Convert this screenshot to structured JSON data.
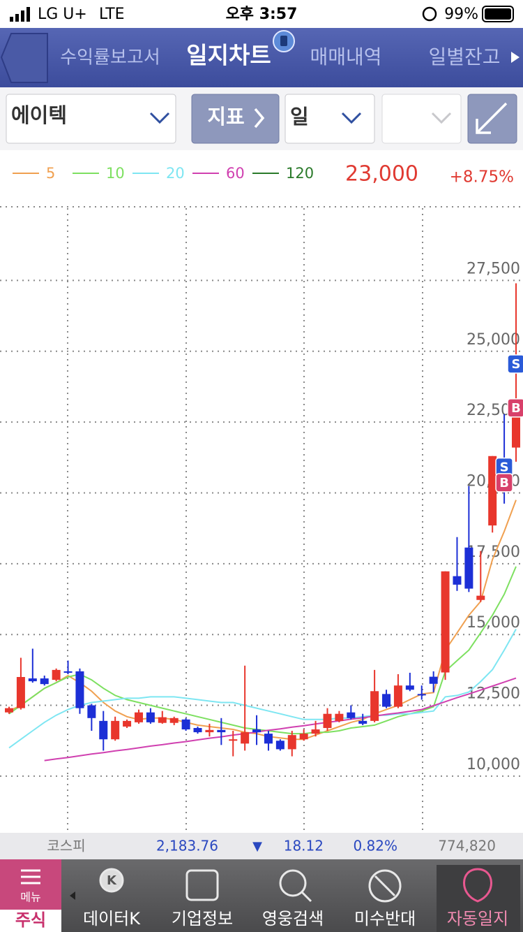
{
  "status_bar": {
    "carrier": "LG U+",
    "network": "LTE",
    "time": "오후 3:57",
    "battery": "99%"
  },
  "tabs": [
    "수익률보고서",
    "일지차트",
    "매매내역",
    "일별잔고"
  ],
  "toolbar": {
    "stock": "에이텍",
    "indicator": "지표",
    "period": "일"
  },
  "price": {
    "last": "23,000",
    "change": "+8.75%"
  },
  "chart_data": {
    "type": "candlestick",
    "up_color": "#e8362c",
    "down_color": "#1c2fd6",
    "open": [
      12250,
      12400,
      13450,
      13450,
      13400,
      13700,
      13700,
      12500,
      11950,
      11300,
      11750,
      11900,
      12250,
      11880,
      11880,
      12000,
      11700,
      11550,
      11630,
      11250,
      11150,
      11650,
      11500,
      11250,
      10950,
      11300,
      11500,
      11700,
      11950,
      12250,
      11950,
      11950,
      12900,
      12450,
      13200,
      12900,
      13510,
      13660,
      17060,
      18070,
      16220,
      18850,
      21230,
      21600
    ],
    "high": [
      12450,
      14180,
      14500,
      13550,
      13800,
      14080,
      13800,
      12550,
      12300,
      12100,
      12000,
      12350,
      12400,
      12300,
      12100,
      12050,
      11750,
      11850,
      12050,
      11600,
      13900,
      12150,
      11600,
      11300,
      11600,
      11650,
      11950,
      12400,
      12300,
      12500,
      12200,
      13750,
      13050,
      13600,
      13650,
      13200,
      13700,
      17230,
      18440,
      20240,
      17950,
      21300,
      22780,
      27400
    ],
    "low": [
      12200,
      12350,
      13300,
      13200,
      13350,
      13600,
      12200,
      11600,
      10900,
      11250,
      11700,
      11850,
      11850,
      11850,
      11800,
      11600,
      11500,
      11400,
      11100,
      10700,
      10900,
      11100,
      10900,
      10900,
      10700,
      11250,
      11400,
      11600,
      11900,
      12000,
      11800,
      11900,
      12400,
      12400,
      13000,
      12700,
      12960,
      13400,
      16540,
      16500,
      16150,
      18600,
      19620,
      21100
    ],
    "close": [
      12400,
      13500,
      13350,
      13250,
      13750,
      13650,
      12400,
      12050,
      11300,
      11950,
      11950,
      12250,
      11900,
      12080,
      12050,
      11650,
      11550,
      11630,
      11550,
      11300,
      11550,
      11550,
      11150,
      10950,
      11450,
      11500,
      11650,
      12200,
      12200,
      12050,
      11850,
      13000,
      12450,
      13200,
      13050,
      12850,
      13260,
      17230,
      16760,
      16620,
      16370,
      21300,
      20360,
      23000
    ],
    "ma_series": [
      {
        "name": "5",
        "color": "#f0a050",
        "values": [
          12300,
          12500,
          12800,
          13100,
          13300,
          13550,
          13300,
          13000,
          12600,
          12300,
          12100,
          12000,
          12050,
          12050,
          12000,
          11900,
          11800,
          11750,
          11700,
          11650,
          11550,
          11500,
          11400,
          11350,
          11300,
          11300,
          11450,
          11600,
          11750,
          11900,
          12000,
          12200,
          12350,
          12500,
          12700,
          12900,
          12950,
          14450,
          15060,
          15680,
          16170,
          17650,
          18640,
          19750
        ]
      },
      {
        "name": "10",
        "color": "#7de060",
        "values": [
          12200,
          12500,
          12800,
          13100,
          13300,
          13500,
          13600,
          13400,
          13100,
          12850,
          12700,
          12600,
          12500,
          12400,
          12300,
          12200,
          12100,
          12000,
          11900,
          11800,
          11700,
          11650,
          11600,
          11550,
          11500,
          11500,
          11550,
          11550,
          11600,
          11700,
          11750,
          11800,
          11950,
          12100,
          12200,
          12300,
          12450,
          13700,
          14080,
          14450,
          15060,
          15680,
          16420,
          17400
        ]
      },
      {
        "name": "20",
        "color": "#7ee6f2",
        "values": [
          11000,
          11300,
          11600,
          11900,
          12150,
          12350,
          12500,
          12600,
          12650,
          12700,
          12750,
          12750,
          12800,
          12800,
          12800,
          12750,
          12700,
          12650,
          12600,
          12600,
          12500,
          12400,
          12300,
          12200,
          12100,
          12000,
          12000,
          12000,
          12050,
          12050,
          12100,
          12150,
          12150,
          12200,
          12200,
          12250,
          12300,
          12800,
          12850,
          12970,
          13340,
          13760,
          14450,
          15190
        ]
      },
      {
        "name": "60",
        "color": "#d040b0",
        "values": [
          null,
          null,
          null,
          10550,
          10610,
          10660,
          10720,
          10780,
          10830,
          10890,
          10940,
          11000,
          11060,
          11110,
          11170,
          11220,
          11280,
          11340,
          11390,
          11450,
          11500,
          11560,
          11620,
          11670,
          11730,
          11780,
          11840,
          11900,
          11950,
          12010,
          12060,
          12120,
          12180,
          12230,
          12290,
          12350,
          12490,
          12630,
          12770,
          12900,
          13040,
          13180,
          13320,
          13460
        ]
      },
      {
        "name": "120",
        "color": "#2a7a2a",
        "values": [
          null,
          null,
          null,
          null,
          null,
          null,
          null,
          null,
          null,
          null,
          null,
          null,
          null,
          null,
          null,
          null,
          null,
          null,
          null,
          null,
          null,
          null,
          null,
          null,
          null,
          null,
          null,
          null,
          null,
          null,
          null,
          null,
          null,
          null,
          null,
          null,
          null,
          null,
          null,
          null,
          null,
          null,
          null,
          null
        ]
      }
    ],
    "markers": [
      {
        "label": "S",
        "value": 24550,
        "candle": 43,
        "color": "#2a5ad8"
      },
      {
        "label": "B",
        "value": 23000,
        "candle": 43,
        "color": "#d8406a"
      },
      {
        "label": "S",
        "value": 20910,
        "candle": 42,
        "color": "#2a5ad8"
      },
      {
        "label": "B",
        "value": 20360,
        "candle": 42,
        "color": "#d8406a"
      }
    ],
    "ylim": [
      8000,
      30100
    ],
    "yticks": [
      {
        "value": 10000,
        "label": "10,000"
      },
      {
        "value": 12500,
        "label": "12,500"
      },
      {
        "value": 15000,
        "label": "15,000"
      },
      {
        "value": 17500,
        "label": "17,500"
      },
      {
        "value": 20000,
        "label": "20,000"
      },
      {
        "value": 22500,
        "label": "22,500"
      },
      {
        "value": 25000,
        "label": "25,000"
      },
      {
        "value": 27500,
        "label": "27,500"
      }
    ],
    "grid": true
  },
  "index_bar": {
    "name": "코스피",
    "value": "2,183.76",
    "arrow": "▼",
    "change": "18.12",
    "percent": "0.82%",
    "volume": "774,820"
  },
  "bottom_nav": {
    "menu": "메뉴",
    "icon_letter": "K",
    "items": [
      "주식",
      "데이터K",
      "기업정보",
      "영웅검색",
      "미수반대",
      "자동일지"
    ]
  }
}
